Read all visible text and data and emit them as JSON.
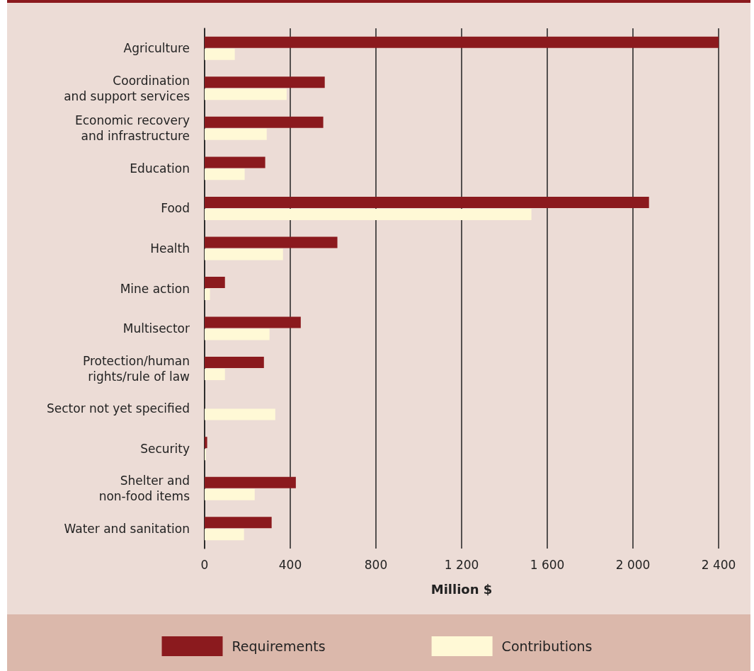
{
  "chart_data": {
    "type": "bar",
    "orientation": "horizontal",
    "xlabel": "Million $",
    "categories": [
      "Agriculture",
      "Coordination\nand support services",
      "Economic recovery\nand infrastructure",
      "Education",
      "Food",
      "Health",
      "Mine action",
      "Multisector",
      "Protection/human\nrights/rule of law",
      "Sector not yet specified",
      "Security",
      "Shelter and\nnon-food items",
      "Water and sanitation"
    ],
    "series": [
      {
        "name": "Requirements",
        "color": "#8b1a1e",
        "values": [
          2400,
          561,
          554,
          283,
          2075,
          620,
          95,
          449,
          277,
          null,
          12,
          426,
          313
        ]
      },
      {
        "name": "Contributions",
        "color": "#fff9d6",
        "values": [
          141,
          383,
          290,
          187,
          1526,
          366,
          25,
          303,
          95,
          330,
          6,
          234,
          184
        ]
      }
    ],
    "xlim": [
      0,
      2400
    ],
    "xticks": [
      0,
      400,
      800,
      {
        "value": 1200,
        "label": "1 200"
      },
      {
        "value": 1600,
        "label": "1 600"
      },
      {
        "value": 2000,
        "label": "2 000"
      },
      {
        "value": 2400,
        "label": "2 400"
      }
    ],
    "grid": "x",
    "legend": "bottom"
  }
}
